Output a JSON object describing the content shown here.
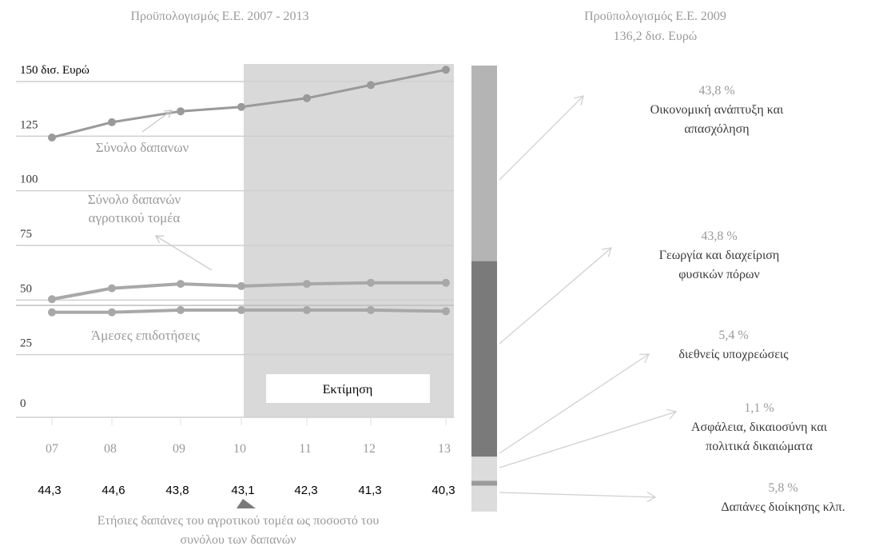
{
  "chart_data": [
    {
      "type": "line",
      "title": "Προϋπολογισμός Ε.Ε. 2007 - 2013",
      "categories": [
        "07",
        "08",
        "09",
        "10",
        "11",
        "12",
        "13"
      ],
      "y_ticks": [
        "0",
        "25",
        "50",
        "75",
        "100",
        "125",
        "150 δισ. Ευρώ"
      ],
      "ylim": [
        0,
        150
      ],
      "grid": true,
      "estimate_from": "10",
      "estimate_label": "Εκτίμηση",
      "series": [
        {
          "name": "Σύνολο δαπανων",
          "values": [
            120,
            127,
            132,
            134,
            138,
            144,
            151
          ],
          "color": "#9a9a9a"
        },
        {
          "name": "Σύνολο δαπανών αγροτικού τομέα",
          "values": [
            46,
            51,
            53,
            52,
            53,
            53.5,
            53.5
          ],
          "color": "#a8a8a8"
        },
        {
          "name": "Άμεσες επιδοτήσεις",
          "values": [
            40,
            40,
            41,
            41,
            41,
            41,
            40.5
          ],
          "color": "#a8a8a8"
        }
      ],
      "series_labels": [
        {
          "series": 0,
          "lines": [
            "Σύνολο δαπανων"
          ]
        },
        {
          "series": 1,
          "lines": [
            "Σύνολο δαπανών",
            "αγροτικού τομέα"
          ]
        },
        {
          "series": 2,
          "lines": [
            "Άμεσες επιδοτήσεις"
          ]
        }
      ],
      "bottom_values": [
        "44,3",
        "44,6",
        "43,8",
        "43,1",
        "42,3",
        "41,3",
        "40,3"
      ],
      "bottom_caption": [
        "Ετήσιες δαπάνες του αγροτικού τομέα ως ποσοστό του",
        "συνόλου των δαπανών"
      ]
    },
    {
      "type": "bar",
      "stacked": true,
      "title": [
        "Προϋπολογισμός Ε.Ε. 2009",
        "136,2 δισ. Ευρώ"
      ],
      "segments": [
        {
          "percent_label": "43,8 %",
          "value": 43.8,
          "lines": [
            "Οικονομική ανάπτυξη και",
            "απασχόληση"
          ],
          "color": "#b4b4b4"
        },
        {
          "percent_label": "43,8 %",
          "value": 43.8,
          "lines": [
            "Γεωργία και διαχείριση",
            "φυσικών πόρων"
          ],
          "color": "#7a7a7a"
        },
        {
          "percent_label": "5,4 %",
          "value": 5.4,
          "lines": [
            "διεθνείς υποχρεώσεις"
          ],
          "color": "#dcdcdc"
        },
        {
          "percent_label": "1,1 %",
          "value": 1.1,
          "lines": [
            "Ασφάλεια, δικαιοσύνη και",
            "πολιτικά δικαιώματα"
          ],
          "color": "#9a9a9a"
        },
        {
          "percent_label": "5,8 %",
          "value": 5.8,
          "lines": [
            "Δαπάνες διοίκησης κλπ."
          ],
          "color": "#dcdcdc"
        }
      ]
    }
  ]
}
